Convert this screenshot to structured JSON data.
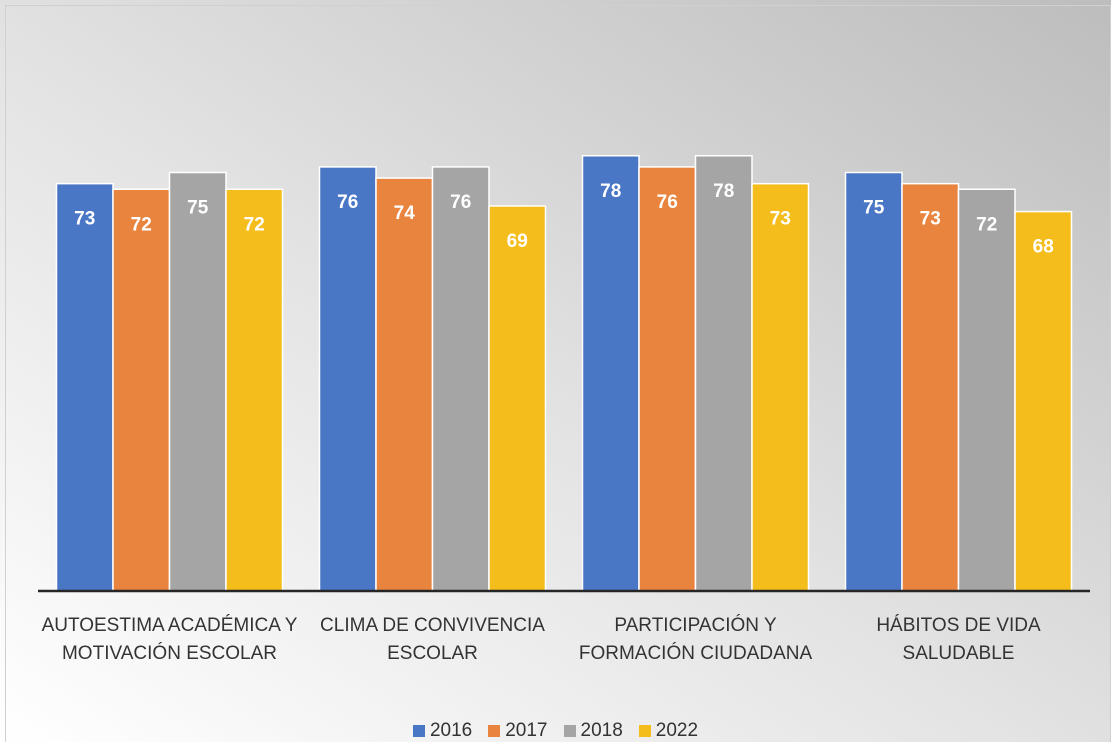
{
  "chart_data": {
    "type": "bar",
    "categories": [
      "AUTOESTIMA ACADÉMICA Y MOTIVACIÓN ESCOLAR",
      "CLIMA DE CONVIVENCIA ESCOLAR",
      "PARTICIPACIÓN Y FORMACIÓN CIUDADANA",
      "HÁBITOS DE VIDA SALUDABLE"
    ],
    "series": [
      {
        "name": "2016",
        "color": "#4a76c6",
        "values": [
          73,
          76,
          78,
          75
        ]
      },
      {
        "name": "2017",
        "color": "#e8843d",
        "values": [
          72,
          74,
          76,
          73
        ]
      },
      {
        "name": "2018",
        "color": "#a5a5a5",
        "values": [
          75,
          76,
          78,
          72
        ]
      },
      {
        "name": "2022",
        "color": "#f5bd1c",
        "values": [
          72,
          69,
          73,
          68
        ]
      }
    ],
    "ylim": [
      0,
      100
    ],
    "grid": false,
    "legend": "bottom"
  }
}
